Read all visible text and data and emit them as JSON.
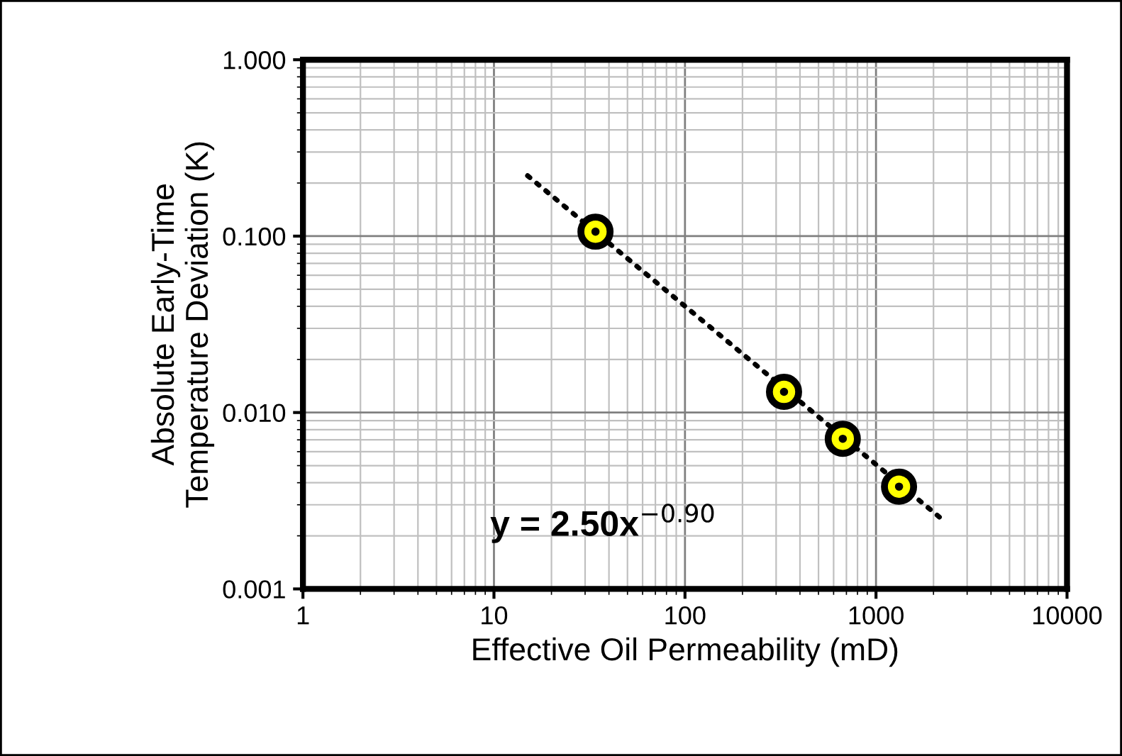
{
  "chart_data": {
    "type": "scatter",
    "xlabel": "Effective Oil Permeability (mD)",
    "ylabel": "Absolute Early-Time\nTemperature Deviation (K)",
    "log": "xy",
    "grid": true,
    "marker": "circle",
    "legend": false,
    "xlim": [
      1,
      10000
    ],
    "xticks": [
      1,
      10,
      100,
      1000,
      10000
    ],
    "ylim": [
      0.001,
      1
    ],
    "yticks": [
      {
        "value": 0.001,
        "label": "0.001"
      },
      {
        "value": 0.01,
        "label": "0.010"
      },
      {
        "value": 0.1,
        "label": "0.100"
      },
      {
        "value": 1,
        "label": "1.000"
      }
    ],
    "series": [
      {
        "type": "line",
        "line_style": "dotted",
        "marker": "none",
        "color": "#000000",
        "x": [
          15,
          2200
        ],
        "values": [
          0.22,
          0.0025
        ]
      },
      {
        "color": "#ffff00",
        "x": [
          34,
          330,
          670,
          1320
        ],
        "values": [
          0.106,
          0.0131,
          0.0071,
          0.0038
        ]
      }
    ],
    "annotations": [
      "y = 2.50x$^{−0.90}$"
    ]
  }
}
